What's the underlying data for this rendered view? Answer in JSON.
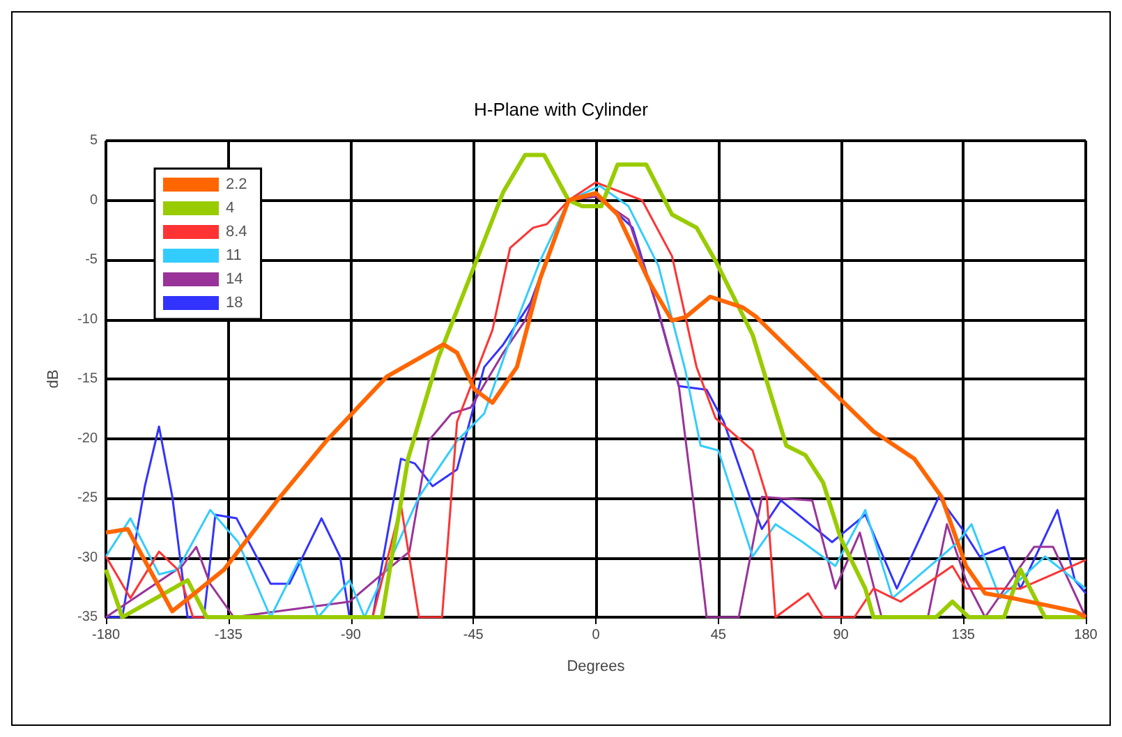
{
  "chart_data": {
    "type": "line",
    "title": "H-Plane with Cylinder",
    "xlabel": "Degrees",
    "ylabel": "dB",
    "xlim": [
      -180,
      180
    ],
    "xticks": [
      -180,
      -135,
      -90,
      -45,
      0,
      45,
      90,
      135,
      180
    ],
    "ylim": [
      -35,
      5
    ],
    "yticks": [
      -35,
      -30,
      -25,
      -20,
      -15,
      -10,
      -5,
      0,
      5
    ],
    "grid": true,
    "legend": "top left",
    "marker": "none",
    "line_style": "solid",
    "series": [
      {
        "name": "2.2",
        "color": "#ff6600",
        "x": [
          -180,
          -172,
          -155.6,
          -136.6,
          -116,
          -99,
          -76.8,
          -56,
          -51,
          -44.5,
          -38,
          -29,
          -20.5,
          -10,
          0,
          8,
          20,
          28,
          33,
          42,
          54,
          59,
          88,
          102,
          117,
          127,
          136,
          143,
          153,
          176,
          180
        ],
        "values": [
          -27.9,
          -27.6,
          -34.5,
          -31,
          -24.9,
          -20.2,
          -14.8,
          -12.1,
          -12.8,
          -15.9,
          -17,
          -14,
          -6.6,
          0,
          0.6,
          -1.2,
          -7,
          -10.1,
          -9.8,
          -8.1,
          -9,
          -9.8,
          -16.3,
          -19.4,
          -21.7,
          -24.9,
          -30.7,
          -33,
          -33.4,
          -34.5,
          -35
        ]
      },
      {
        "name": "4",
        "color": "#99cc00",
        "x": [
          -180,
          -174,
          -150,
          -143,
          -78.6,
          -69,
          -58,
          -46,
          -34,
          -26,
          -19,
          -10,
          -5,
          2,
          8,
          18.5,
          28,
          37,
          44,
          57.6,
          70,
          77,
          83.5,
          90,
          99,
          102,
          125,
          131,
          137,
          150,
          156,
          165,
          180
        ],
        "values": [
          -31,
          -35,
          -31.9,
          -35,
          -35,
          -21.7,
          -13.3,
          -6.3,
          0.7,
          3.8,
          3.8,
          0,
          -0.5,
          -0.5,
          3,
          3,
          -1.2,
          -2.3,
          -5.1,
          -11.3,
          -20.6,
          -21.4,
          -23.7,
          -28.4,
          -32.6,
          -35,
          -35,
          -33.7,
          -35,
          -35,
          -31,
          -35,
          -35
        ]
      },
      {
        "name": "8.4",
        "color": "#ff3333",
        "x": [
          -180,
          -171,
          -160.5,
          -153.6,
          -148,
          -82,
          -71.6,
          -65,
          -56.5,
          -51,
          -38,
          -31.5,
          -23,
          -18,
          -10,
          0,
          17,
          28,
          37,
          44,
          57.6,
          62.8,
          66,
          78,
          83.5,
          95,
          102,
          112,
          131,
          136,
          156,
          180
        ],
        "values": [
          -29.9,
          -33.4,
          -29.5,
          -31,
          -35,
          -35,
          -25.6,
          -35,
          -35,
          -18.6,
          -10.9,
          -4,
          -2.3,
          -2,
          0,
          1.5,
          0,
          -4.7,
          -14,
          -18.3,
          -21,
          -24.9,
          -35,
          -33,
          -35,
          -35,
          -32.6,
          -33.7,
          -30.7,
          -32.6,
          -32.6,
          -30.2
        ]
      },
      {
        "name": "11",
        "color": "#33ccff",
        "x": [
          -180,
          -171,
          -160.5,
          -153.6,
          -141.7,
          -131.4,
          -119.5,
          -109,
          -102,
          -90.5,
          -85,
          -65,
          -51,
          -41,
          -29,
          -20.5,
          -10,
          1.5,
          12,
          23,
          33,
          38.5,
          45,
          57.6,
          66,
          76,
          88,
          99,
          109,
          133,
          138,
          148.5,
          165,
          180
        ],
        "values": [
          -29.9,
          -26.7,
          -31.4,
          -31,
          -26,
          -28.7,
          -35,
          -30.2,
          -35,
          -31.9,
          -35,
          -24.9,
          -20.2,
          -17.9,
          -10.1,
          -5.1,
          0,
          1.2,
          -0.5,
          -5.5,
          -14.4,
          -20.6,
          -21,
          -29.9,
          -27.2,
          -28.7,
          -30.7,
          -26,
          -33.4,
          -28.7,
          -27.2,
          -33.4,
          -29.9,
          -32.6
        ]
      },
      {
        "name": "14",
        "color": "#993399",
        "x": [
          -180,
          -152,
          -146.8,
          -141.7,
          -133,
          -90.5,
          -78.6,
          -68.5,
          -61.5,
          -53,
          -46,
          -34,
          -26,
          -10,
          0,
          12,
          23,
          30.5,
          35.6,
          40.7,
          52.5,
          61,
          79.5,
          88,
          97,
          105,
          122,
          129,
          136,
          143,
          161,
          168,
          180
        ],
        "values": [
          -35,
          -30.7,
          -29.1,
          -32.2,
          -35,
          -33.7,
          -31.4,
          -29.5,
          -20.2,
          -17.9,
          -17.4,
          -12.8,
          -10.1,
          0,
          0.3,
          -1.6,
          -9.3,
          -15.6,
          -24.9,
          -35,
          -35,
          -24.9,
          -25.2,
          -32.6,
          -27.9,
          -35,
          -35,
          -27.2,
          -31.9,
          -35,
          -29.1,
          -29.1,
          -35
        ]
      },
      {
        "name": "18",
        "color": "#3333ff",
        "x": [
          -180,
          -174,
          -165.7,
          -160.5,
          -155.6,
          -150,
          -144,
          -139.8,
          -132,
          -119.5,
          -112.6,
          -100.8,
          -94,
          -90.5,
          -82,
          -71.6,
          -66.5,
          -60,
          -51,
          -41,
          -34,
          -24,
          -10,
          0,
          13.5,
          22,
          30.5,
          40.7,
          47,
          57.6,
          61,
          68,
          86.8,
          99,
          110.6,
          126,
          134.6,
          141,
          150,
          156,
          169.6,
          176,
          180
        ],
        "values": [
          -35,
          -35,
          -24,
          -19,
          -24.9,
          -35,
          -35,
          -26.4,
          -26.7,
          -32.2,
          -32.2,
          -26.7,
          -29.9,
          -35,
          -35,
          -21.7,
          -22.1,
          -24,
          -22.6,
          -14,
          -12.1,
          -8.6,
          0,
          0.6,
          -2.3,
          -8.6,
          -15.6,
          -15.9,
          -18.6,
          -25.6,
          -27.6,
          -25.2,
          -28.7,
          -26.4,
          -32.6,
          -24.9,
          -27.6,
          -29.9,
          -29.1,
          -32.6,
          -26,
          -31.9,
          -33
        ]
      }
    ]
  }
}
